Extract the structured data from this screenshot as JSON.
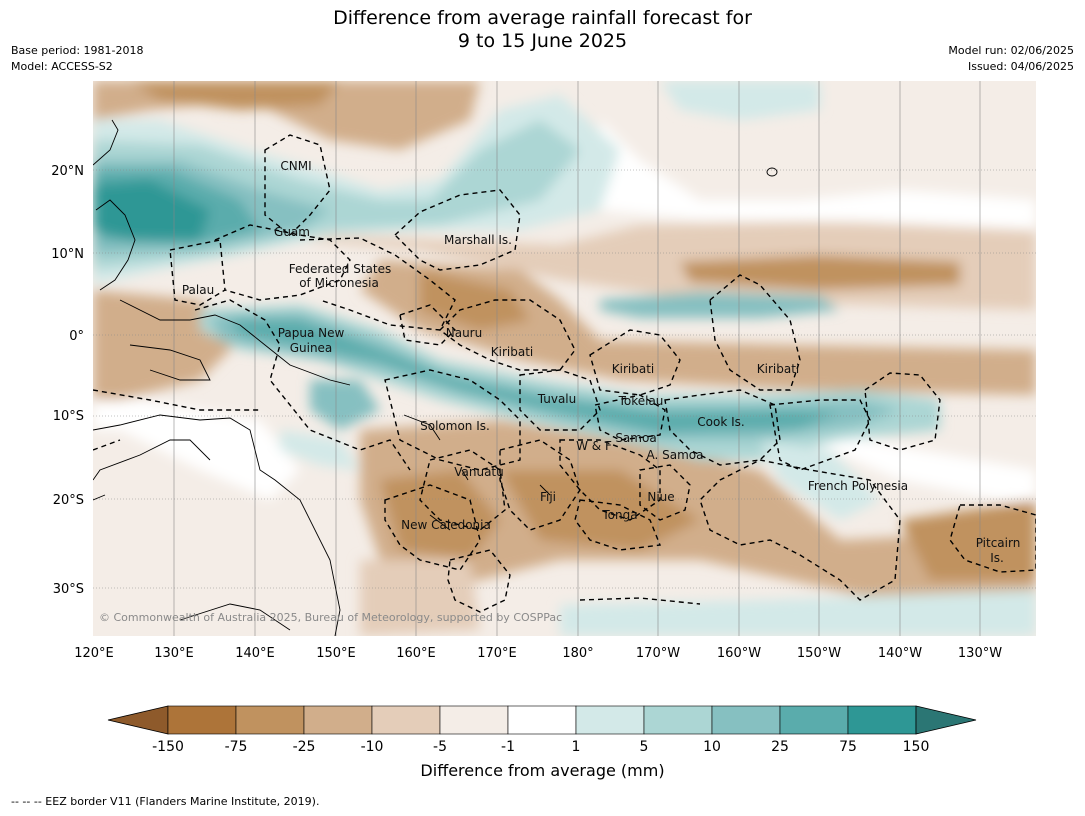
{
  "title": {
    "line1": "Difference from average rainfall forecast for",
    "line2": "9 to 15 June 2025"
  },
  "meta_left": {
    "base_period": "Base period: 1981-2018",
    "model": "Model: ACCESS-S2"
  },
  "meta_right": {
    "model_run": "Model run: 02/06/2025",
    "issued": "Issued: 04/06/2025"
  },
  "map": {
    "lon_labels": [
      "120°E",
      "130°E",
      "140°E",
      "150°E",
      "160°E",
      "170°E",
      "180°",
      "170°W",
      "160°W",
      "150°W",
      "140°W",
      "130°W"
    ],
    "lat_labels": [
      "20°N",
      "10°N",
      "0°",
      "10°S",
      "20°S",
      "30°S"
    ],
    "copyright": "© Commonwealth of Australia 2025, Bureau of Meteorology, supported by COSPPac",
    "region_labels": [
      "CNMI",
      "Guam",
      "Marshall Is.",
      "Federated States",
      "of Micronesia",
      "Palau",
      "Papua New",
      "Guinea",
      "Nauru",
      "Kiribati",
      "Kiribati",
      "Kiribati",
      "Tuvalu",
      "Tokelau",
      "Cook Is.",
      "Solomon Is.",
      "W & F",
      "Samoa",
      "A. Samoa",
      "Vanuatu",
      "Fiji",
      "Niue",
      "Tonga",
      "New Caledonia",
      "French Polynesia",
      "Pitcairn",
      "Is."
    ]
  },
  "colorbar": {
    "tick_labels": [
      "-150",
      "-75",
      "-25",
      "-10",
      "-5",
      "-1",
      "1",
      "5",
      "10",
      "25",
      "75",
      "150"
    ],
    "colors": [
      "#8e5a2b",
      "#ad7439",
      "#c0925f",
      "#d1ae8b",
      "#e4cdb9",
      "#f4ede7",
      "#ffffff",
      "#d3e9e8",
      "#acd6d4",
      "#86c0c1",
      "#5aacac",
      "#2e9795",
      "#2b7674"
    ],
    "title": "Difference from average (mm)"
  },
  "footer": "--  --  -- EEZ border V11 (Flanders Marine Institute, 2019)."
}
